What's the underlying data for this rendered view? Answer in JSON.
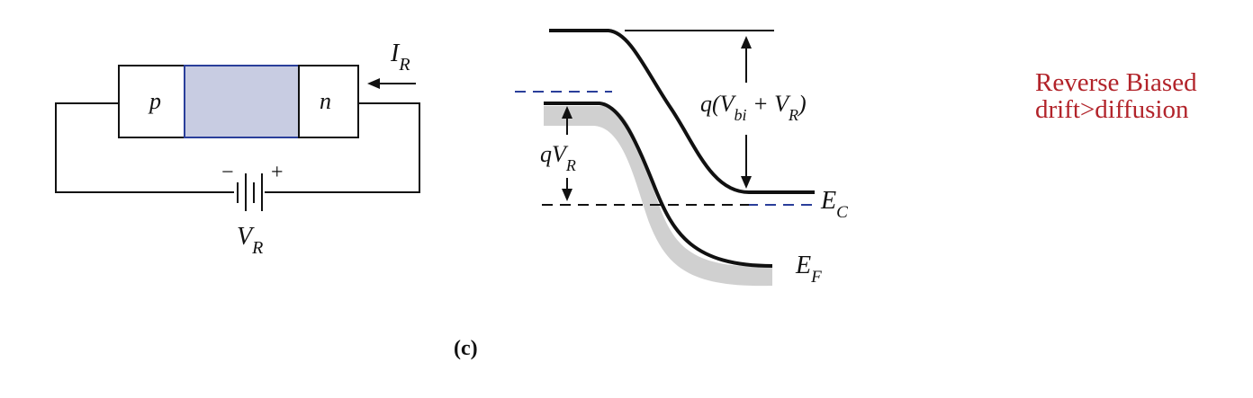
{
  "circuit": {
    "p_label": "p",
    "n_label": "n",
    "current_symbol": "I",
    "current_subscript": "R",
    "battery_minus": "−",
    "battery_plus": "+",
    "voltage_symbol": "V",
    "voltage_subscript": "R"
  },
  "band_diagram": {
    "qvr_q": "q",
    "qvr_v": "V",
    "qvr_sub": "R",
    "barrier_prefix": "q(V",
    "barrier_sub1": "bi",
    "barrier_mid": " + V",
    "barrier_sub2": "R",
    "barrier_suffix": ")",
    "ec_symbol": "E",
    "ec_subscript": "C",
    "ef_symbol": "E",
    "ef_subscript": "F"
  },
  "caption": "(c)",
  "note": {
    "line1": "Reverse Biased",
    "line2": "drift>diffusion"
  },
  "colors": {
    "depletion_fill": "#c8cce2",
    "depletion_border": "#2a3e9a",
    "dashed_blue": "#2a3e9a",
    "note_red": "#b2232a",
    "shadow_gray": "#d0d0d0"
  }
}
